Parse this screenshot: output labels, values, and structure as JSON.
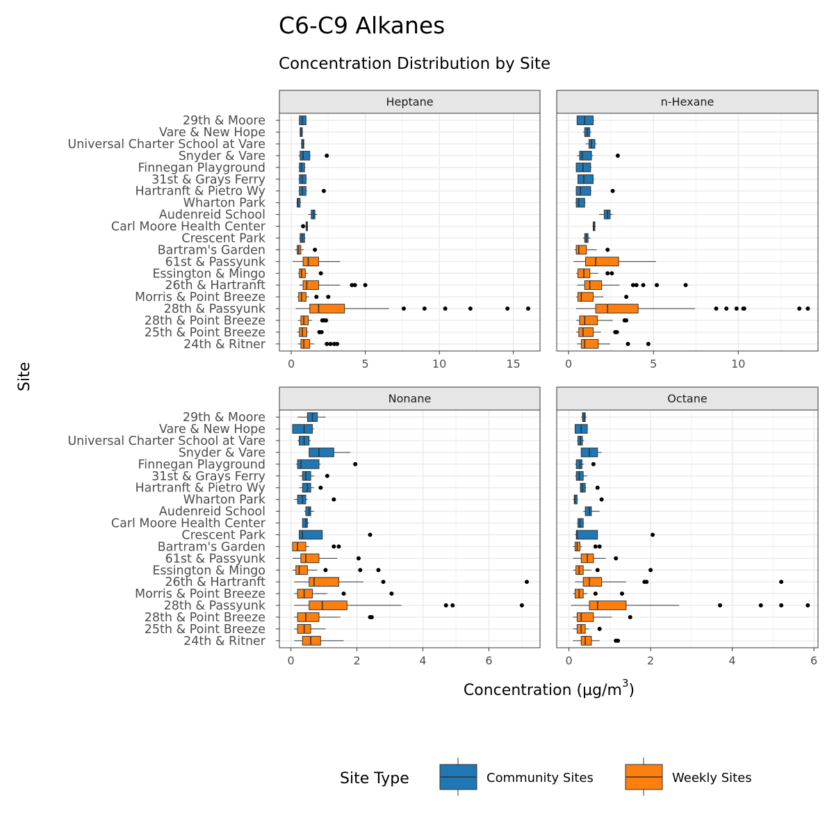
{
  "chart_data": {
    "type": "boxplot",
    "title": "C6-C9 Alkanes",
    "subtitle": "Concentration Distribution by Site",
    "xlabel": "Concentration (µg/m",
    "xlabel_superscript": "3",
    "xlabel_suffix": ")",
    "ylabel": "Site",
    "sites": [
      "29th & Moore",
      "Vare & New Hope",
      "Universal Charter School at Vare",
      "Snyder & Vare",
      "Finnegan Playground",
      "31st & Grays Ferry",
      "Hartranft & Pietro Wy",
      "Wharton Park",
      "Audenreid School",
      "Carl Moore Health Center",
      "Crescent Park",
      "Bartram's Garden",
      "61st & Passyunk",
      "Essington & Mingo",
      "26th & Hartranft",
      "Morris & Point Breeze",
      "28th & Passyunk",
      "28th & Point Breeze",
      "25th & Point Breeze",
      "24th & Ritner"
    ],
    "site_types": [
      "Community Sites",
      "Community Sites",
      "Community Sites",
      "Community Sites",
      "Community Sites",
      "Community Sites",
      "Community Sites",
      "Community Sites",
      "Community Sites",
      "Community Sites",
      "Community Sites",
      "Weekly Sites",
      "Weekly Sites",
      "Weekly Sites",
      "Weekly Sites",
      "Weekly Sites",
      "Weekly Sites",
      "Weekly Sites",
      "Weekly Sites",
      "Weekly Sites"
    ],
    "legend": {
      "title": "Site Type",
      "position": "bottom",
      "entries": [
        {
          "name": "Community Sites",
          "color": "#1f77b4"
        },
        {
          "name": "Weekly Sites",
          "color": "#ff7f0e"
        }
      ]
    },
    "grid": true,
    "panels": [
      {
        "name": "Heptane",
        "xlim": [
          -0.8,
          16.8
        ],
        "ticks": [
          0,
          5,
          10,
          15
        ],
        "boxes": [
          {
            "lw": 0.55,
            "q1": 0.55,
            "med": 0.75,
            "q3": 1.0,
            "hw": 1.0,
            "out": []
          },
          {
            "lw": 0.6,
            "q1": 0.6,
            "med": 0.65,
            "q3": 0.75,
            "hw": 0.8,
            "out": []
          },
          {
            "lw": 0.65,
            "q1": 0.7,
            "med": 0.8,
            "q3": 0.85,
            "hw": 0.9,
            "out": []
          },
          {
            "lw": 0.5,
            "q1": 0.6,
            "med": 0.8,
            "q3": 1.25,
            "hw": 1.3,
            "out": [
              2.4
            ]
          },
          {
            "lw": 0.5,
            "q1": 0.55,
            "med": 0.7,
            "q3": 0.9,
            "hw": 0.95,
            "out": []
          },
          {
            "lw": 0.5,
            "q1": 0.55,
            "med": 0.75,
            "q3": 1.0,
            "hw": 1.05,
            "out": []
          },
          {
            "lw": 0.5,
            "q1": 0.55,
            "med": 0.75,
            "q3": 1.0,
            "hw": 1.05,
            "out": [
              2.2
            ]
          },
          {
            "lw": 0.35,
            "q1": 0.4,
            "med": 0.45,
            "q3": 0.6,
            "hw": 0.65,
            "out": []
          },
          {
            "lw": 1.15,
            "q1": 1.35,
            "med": 1.5,
            "q3": 1.6,
            "hw": 1.75,
            "out": []
          },
          {
            "lw": 0.95,
            "q1": 1.0,
            "med": 1.05,
            "q3": 1.1,
            "hw": 1.15,
            "out": [
              0.8
            ]
          },
          {
            "lw": 0.55,
            "q1": 0.6,
            "med": 0.75,
            "q3": 0.9,
            "hw": 0.95,
            "out": []
          },
          {
            "lw": 0.25,
            "q1": 0.4,
            "med": 0.5,
            "q3": 0.65,
            "hw": 0.85,
            "out": [
              1.6
            ]
          },
          {
            "lw": 0.1,
            "q1": 0.8,
            "med": 1.15,
            "q3": 1.85,
            "hw": 3.3,
            "out": []
          },
          {
            "lw": 0.45,
            "q1": 0.55,
            "med": 0.7,
            "q3": 0.95,
            "hw": 1.1,
            "out": [
              2.0
            ]
          },
          {
            "lw": 0.55,
            "q1": 0.8,
            "med": 1.05,
            "q3": 1.85,
            "hw": 3.3,
            "out": [
              4.1,
              4.3,
              5.0
            ]
          },
          {
            "lw": 0.4,
            "q1": 0.5,
            "med": 0.7,
            "q3": 1.0,
            "hw": 1.2,
            "out": [
              1.7,
              2.5
            ]
          },
          {
            "lw": 0.3,
            "q1": 1.25,
            "med": 1.85,
            "q3": 3.6,
            "hw": 6.6,
            "out": [
              7.6,
              9.0,
              10.4,
              12.1,
              14.6,
              16.0
            ]
          },
          {
            "lw": 0.45,
            "q1": 0.65,
            "med": 0.85,
            "q3": 1.15,
            "hw": 1.4,
            "out": [
              2.1,
              2.2,
              2.35
            ]
          },
          {
            "lw": 0.4,
            "q1": 0.55,
            "med": 0.75,
            "q3": 1.05,
            "hw": 1.15,
            "out": [
              1.9,
              2.05
            ]
          },
          {
            "lw": 0.45,
            "q1": 0.65,
            "med": 0.85,
            "q3": 1.25,
            "hw": 1.55,
            "out": [
              2.4,
              2.65,
              2.9,
              3.1
            ]
          }
        ]
      },
      {
        "name": "n-Hexane",
        "xlim": [
          -0.7,
          14.7
        ],
        "ticks": [
          0,
          5,
          10
        ],
        "boxes": [
          {
            "lw": 0.5,
            "q1": 0.5,
            "med": 0.95,
            "q3": 1.45,
            "hw": 1.5,
            "out": []
          },
          {
            "lw": 0.85,
            "q1": 0.95,
            "med": 1.1,
            "q3": 1.25,
            "hw": 1.35,
            "out": []
          },
          {
            "lw": 1.0,
            "q1": 1.2,
            "med": 1.35,
            "q3": 1.55,
            "hw": 1.65,
            "out": []
          },
          {
            "lw": 0.5,
            "q1": 0.65,
            "med": 0.8,
            "q3": 1.35,
            "hw": 1.45,
            "out": [
              2.9
            ]
          },
          {
            "lw": 0.45,
            "q1": 0.45,
            "med": 0.85,
            "q3": 1.3,
            "hw": 1.35,
            "out": []
          },
          {
            "lw": 0.55,
            "q1": 0.55,
            "med": 0.9,
            "q3": 1.45,
            "hw": 1.5,
            "out": []
          },
          {
            "lw": 0.45,
            "q1": 0.45,
            "med": 0.7,
            "q3": 1.3,
            "hw": 1.35,
            "out": [
              2.6
            ]
          },
          {
            "lw": 0.4,
            "q1": 0.45,
            "med": 0.6,
            "q3": 0.95,
            "hw": 1.0,
            "out": []
          },
          {
            "lw": 1.8,
            "q1": 2.1,
            "med": 2.3,
            "q3": 2.45,
            "hw": 2.6,
            "out": []
          },
          {
            "lw": 1.4,
            "q1": 1.45,
            "med": 1.5,
            "q3": 1.55,
            "hw": 1.6,
            "out": []
          },
          {
            "lw": 0.85,
            "q1": 0.95,
            "med": 1.05,
            "q3": 1.15,
            "hw": 1.3,
            "out": []
          },
          {
            "lw": 0.35,
            "q1": 0.45,
            "med": 0.6,
            "q3": 1.05,
            "hw": 1.65,
            "out": [
              2.3
            ]
          },
          {
            "lw": 0.3,
            "q1": 1.0,
            "med": 1.6,
            "q3": 2.95,
            "hw": 5.15,
            "out": []
          },
          {
            "lw": 0.45,
            "q1": 0.55,
            "med": 0.9,
            "q3": 1.25,
            "hw": 1.75,
            "out": [
              2.3,
              2.55
            ]
          },
          {
            "lw": 0.5,
            "q1": 0.95,
            "med": 1.25,
            "q3": 1.95,
            "hw": 3.0,
            "out": [
              3.8,
              4.0,
              4.4,
              5.2,
              6.9
            ]
          },
          {
            "lw": 0.45,
            "q1": 0.55,
            "med": 0.75,
            "q3": 1.45,
            "hw": 2.05,
            "out": [
              3.4
            ]
          },
          {
            "lw": 0.45,
            "q1": 1.6,
            "med": 2.3,
            "q3": 4.1,
            "hw": 7.45,
            "out": [
              8.7,
              9.3,
              9.9,
              10.3,
              10.35,
              13.6,
              14.1
            ]
          },
          {
            "lw": 0.45,
            "q1": 0.65,
            "med": 0.95,
            "q3": 1.7,
            "hw": 2.6,
            "out": [
              3.3,
              3.4
            ]
          },
          {
            "lw": 0.45,
            "q1": 0.6,
            "med": 0.85,
            "q3": 1.45,
            "hw": 1.9,
            "out": [
              2.75,
              2.85
            ]
          },
          {
            "lw": 0.5,
            "q1": 0.75,
            "med": 0.95,
            "q3": 1.75,
            "hw": 2.45,
            "out": [
              3.5,
              4.7
            ]
          }
        ]
      },
      {
        "name": "Nonane",
        "xlim": [
          -0.35,
          7.55
        ],
        "ticks": [
          0,
          2,
          4,
          6
        ],
        "boxes": [
          {
            "lw": 0.2,
            "q1": 0.5,
            "med": 0.65,
            "q3": 0.8,
            "hw": 1.05,
            "out": []
          },
          {
            "lw": 0.05,
            "q1": 0.05,
            "med": 0.4,
            "q3": 0.65,
            "hw": 0.7,
            "out": []
          },
          {
            "lw": 0.2,
            "q1": 0.25,
            "med": 0.4,
            "q3": 0.55,
            "hw": 0.6,
            "out": []
          },
          {
            "lw": 0.55,
            "q1": 0.55,
            "med": 0.85,
            "q3": 1.3,
            "hw": 1.8,
            "out": []
          },
          {
            "lw": 0.15,
            "q1": 0.2,
            "med": 0.3,
            "q3": 0.85,
            "hw": 0.9,
            "out": [
              1.95
            ]
          },
          {
            "lw": 0.25,
            "q1": 0.35,
            "med": 0.45,
            "q3": 0.6,
            "hw": 0.7,
            "out": [
              1.1
            ]
          },
          {
            "lw": 0.25,
            "q1": 0.35,
            "med": 0.5,
            "q3": 0.6,
            "hw": 0.7,
            "out": [
              0.9
            ]
          },
          {
            "lw": 0.1,
            "q1": 0.2,
            "med": 0.35,
            "q3": 0.45,
            "hw": 0.5,
            "out": [
              1.3
            ]
          },
          {
            "lw": 0.4,
            "q1": 0.45,
            "med": 0.55,
            "q3": 0.6,
            "hw": 0.7,
            "out": []
          },
          {
            "lw": 0.35,
            "q1": 0.35,
            "med": 0.45,
            "q3": 0.5,
            "hw": 0.55,
            "out": []
          },
          {
            "lw": 0.25,
            "q1": 0.25,
            "med": 0.35,
            "q3": 0.95,
            "hw": 0.95,
            "out": [
              2.4
            ]
          },
          {
            "lw": 0.05,
            "q1": 0.05,
            "med": 0.2,
            "q3": 0.45,
            "hw": 0.55,
            "out": [
              1.3,
              1.45
            ]
          },
          {
            "lw": 0.05,
            "q1": 0.3,
            "med": 0.45,
            "q3": 0.85,
            "hw": 1.4,
            "out": [
              2.05
            ]
          },
          {
            "lw": 0.05,
            "q1": 0.15,
            "med": 0.25,
            "q3": 0.5,
            "hw": 0.8,
            "out": [
              1.05,
              2.1,
              2.65
            ]
          },
          {
            "lw": 0.1,
            "q1": 0.55,
            "med": 0.7,
            "q3": 1.45,
            "hw": 2.2,
            "out": [
              2.8,
              7.15
            ]
          },
          {
            "lw": 0.1,
            "q1": 0.2,
            "med": 0.4,
            "q3": 0.65,
            "hw": 1.1,
            "out": [
              1.6,
              3.05
            ]
          },
          {
            "lw": 0.1,
            "q1": 0.55,
            "med": 0.95,
            "q3": 1.7,
            "hw": 3.35,
            "out": [
              4.7,
              4.9,
              7.0
            ]
          },
          {
            "lw": 0.1,
            "q1": 0.2,
            "med": 0.45,
            "q3": 0.85,
            "hw": 1.5,
            "out": [
              2.4,
              2.45
            ]
          },
          {
            "lw": 0.1,
            "q1": 0.2,
            "med": 0.4,
            "q3": 0.6,
            "hw": 1.05,
            "out": []
          },
          {
            "lw": 0.1,
            "q1": 0.35,
            "med": 0.6,
            "q3": 0.9,
            "hw": 1.6,
            "out": []
          }
        ]
      },
      {
        "name": "Octane",
        "xlim": [
          -0.3,
          6.1
        ],
        "ticks": [
          0,
          2,
          4,
          6
        ],
        "boxes": [
          {
            "lw": 0.3,
            "q1": 0.33,
            "med": 0.37,
            "q3": 0.4,
            "hw": 0.43,
            "out": []
          },
          {
            "lw": 0.15,
            "q1": 0.15,
            "med": 0.3,
            "q3": 0.45,
            "hw": 0.45,
            "out": []
          },
          {
            "lw": 0.2,
            "q1": 0.22,
            "med": 0.28,
            "q3": 0.33,
            "hw": 0.37,
            "out": []
          },
          {
            "lw": 0.3,
            "q1": 0.3,
            "med": 0.5,
            "q3": 0.7,
            "hw": 0.8,
            "out": []
          },
          {
            "lw": 0.15,
            "q1": 0.18,
            "med": 0.27,
            "q3": 0.32,
            "hw": 0.37,
            "out": [
              0.6
            ]
          },
          {
            "lw": 0.15,
            "q1": 0.18,
            "med": 0.25,
            "q3": 0.35,
            "hw": 0.45,
            "out": []
          },
          {
            "lw": 0.27,
            "q1": 0.28,
            "med": 0.33,
            "q3": 0.4,
            "hw": 0.42,
            "out": [
              0.7
            ]
          },
          {
            "lw": 0.1,
            "q1": 0.13,
            "med": 0.15,
            "q3": 0.2,
            "hw": 0.22,
            "out": [
              0.8
            ]
          },
          {
            "lw": 0.35,
            "q1": 0.4,
            "med": 0.5,
            "q3": 0.55,
            "hw": 0.75,
            "out": []
          },
          {
            "lw": 0.2,
            "q1": 0.22,
            "med": 0.27,
            "q3": 0.35,
            "hw": 0.37,
            "out": []
          },
          {
            "lw": 0.15,
            "q1": 0.18,
            "med": 0.2,
            "q3": 0.7,
            "hw": 0.7,
            "out": [
              2.05
            ]
          },
          {
            "lw": 0.1,
            "q1": 0.15,
            "med": 0.2,
            "q3": 0.27,
            "hw": 0.32,
            "out": [
              0.65,
              0.75
            ]
          },
          {
            "lw": 0.1,
            "q1": 0.3,
            "med": 0.45,
            "q3": 0.6,
            "hw": 0.9,
            "out": [
              1.15
            ]
          },
          {
            "lw": 0.1,
            "q1": 0.17,
            "med": 0.25,
            "q3": 0.35,
            "hw": 0.55,
            "out": [
              0.7,
              2.0
            ]
          },
          {
            "lw": 0.15,
            "q1": 0.35,
            "med": 0.5,
            "q3": 0.8,
            "hw": 1.4,
            "out": [
              1.85,
              1.9,
              5.2
            ]
          },
          {
            "lw": 0.1,
            "q1": 0.15,
            "med": 0.25,
            "q3": 0.35,
            "hw": 0.45,
            "out": [
              0.65,
              1.3
            ]
          },
          {
            "lw": 0.05,
            "q1": 0.5,
            "med": 0.7,
            "q3": 1.4,
            "hw": 2.7,
            "out": [
              3.7,
              4.7,
              5.2,
              5.85
            ]
          },
          {
            "lw": 0.1,
            "q1": 0.2,
            "med": 0.3,
            "q3": 0.6,
            "hw": 1.05,
            "out": [
              1.5
            ]
          },
          {
            "lw": 0.1,
            "q1": 0.2,
            "med": 0.3,
            "q3": 0.4,
            "hw": 0.5,
            "out": [
              0.75
            ]
          },
          {
            "lw": 0.1,
            "q1": 0.3,
            "med": 0.4,
            "q3": 0.55,
            "hw": 0.75,
            "out": [
              1.15,
              1.2
            ]
          }
        ]
      }
    ]
  }
}
